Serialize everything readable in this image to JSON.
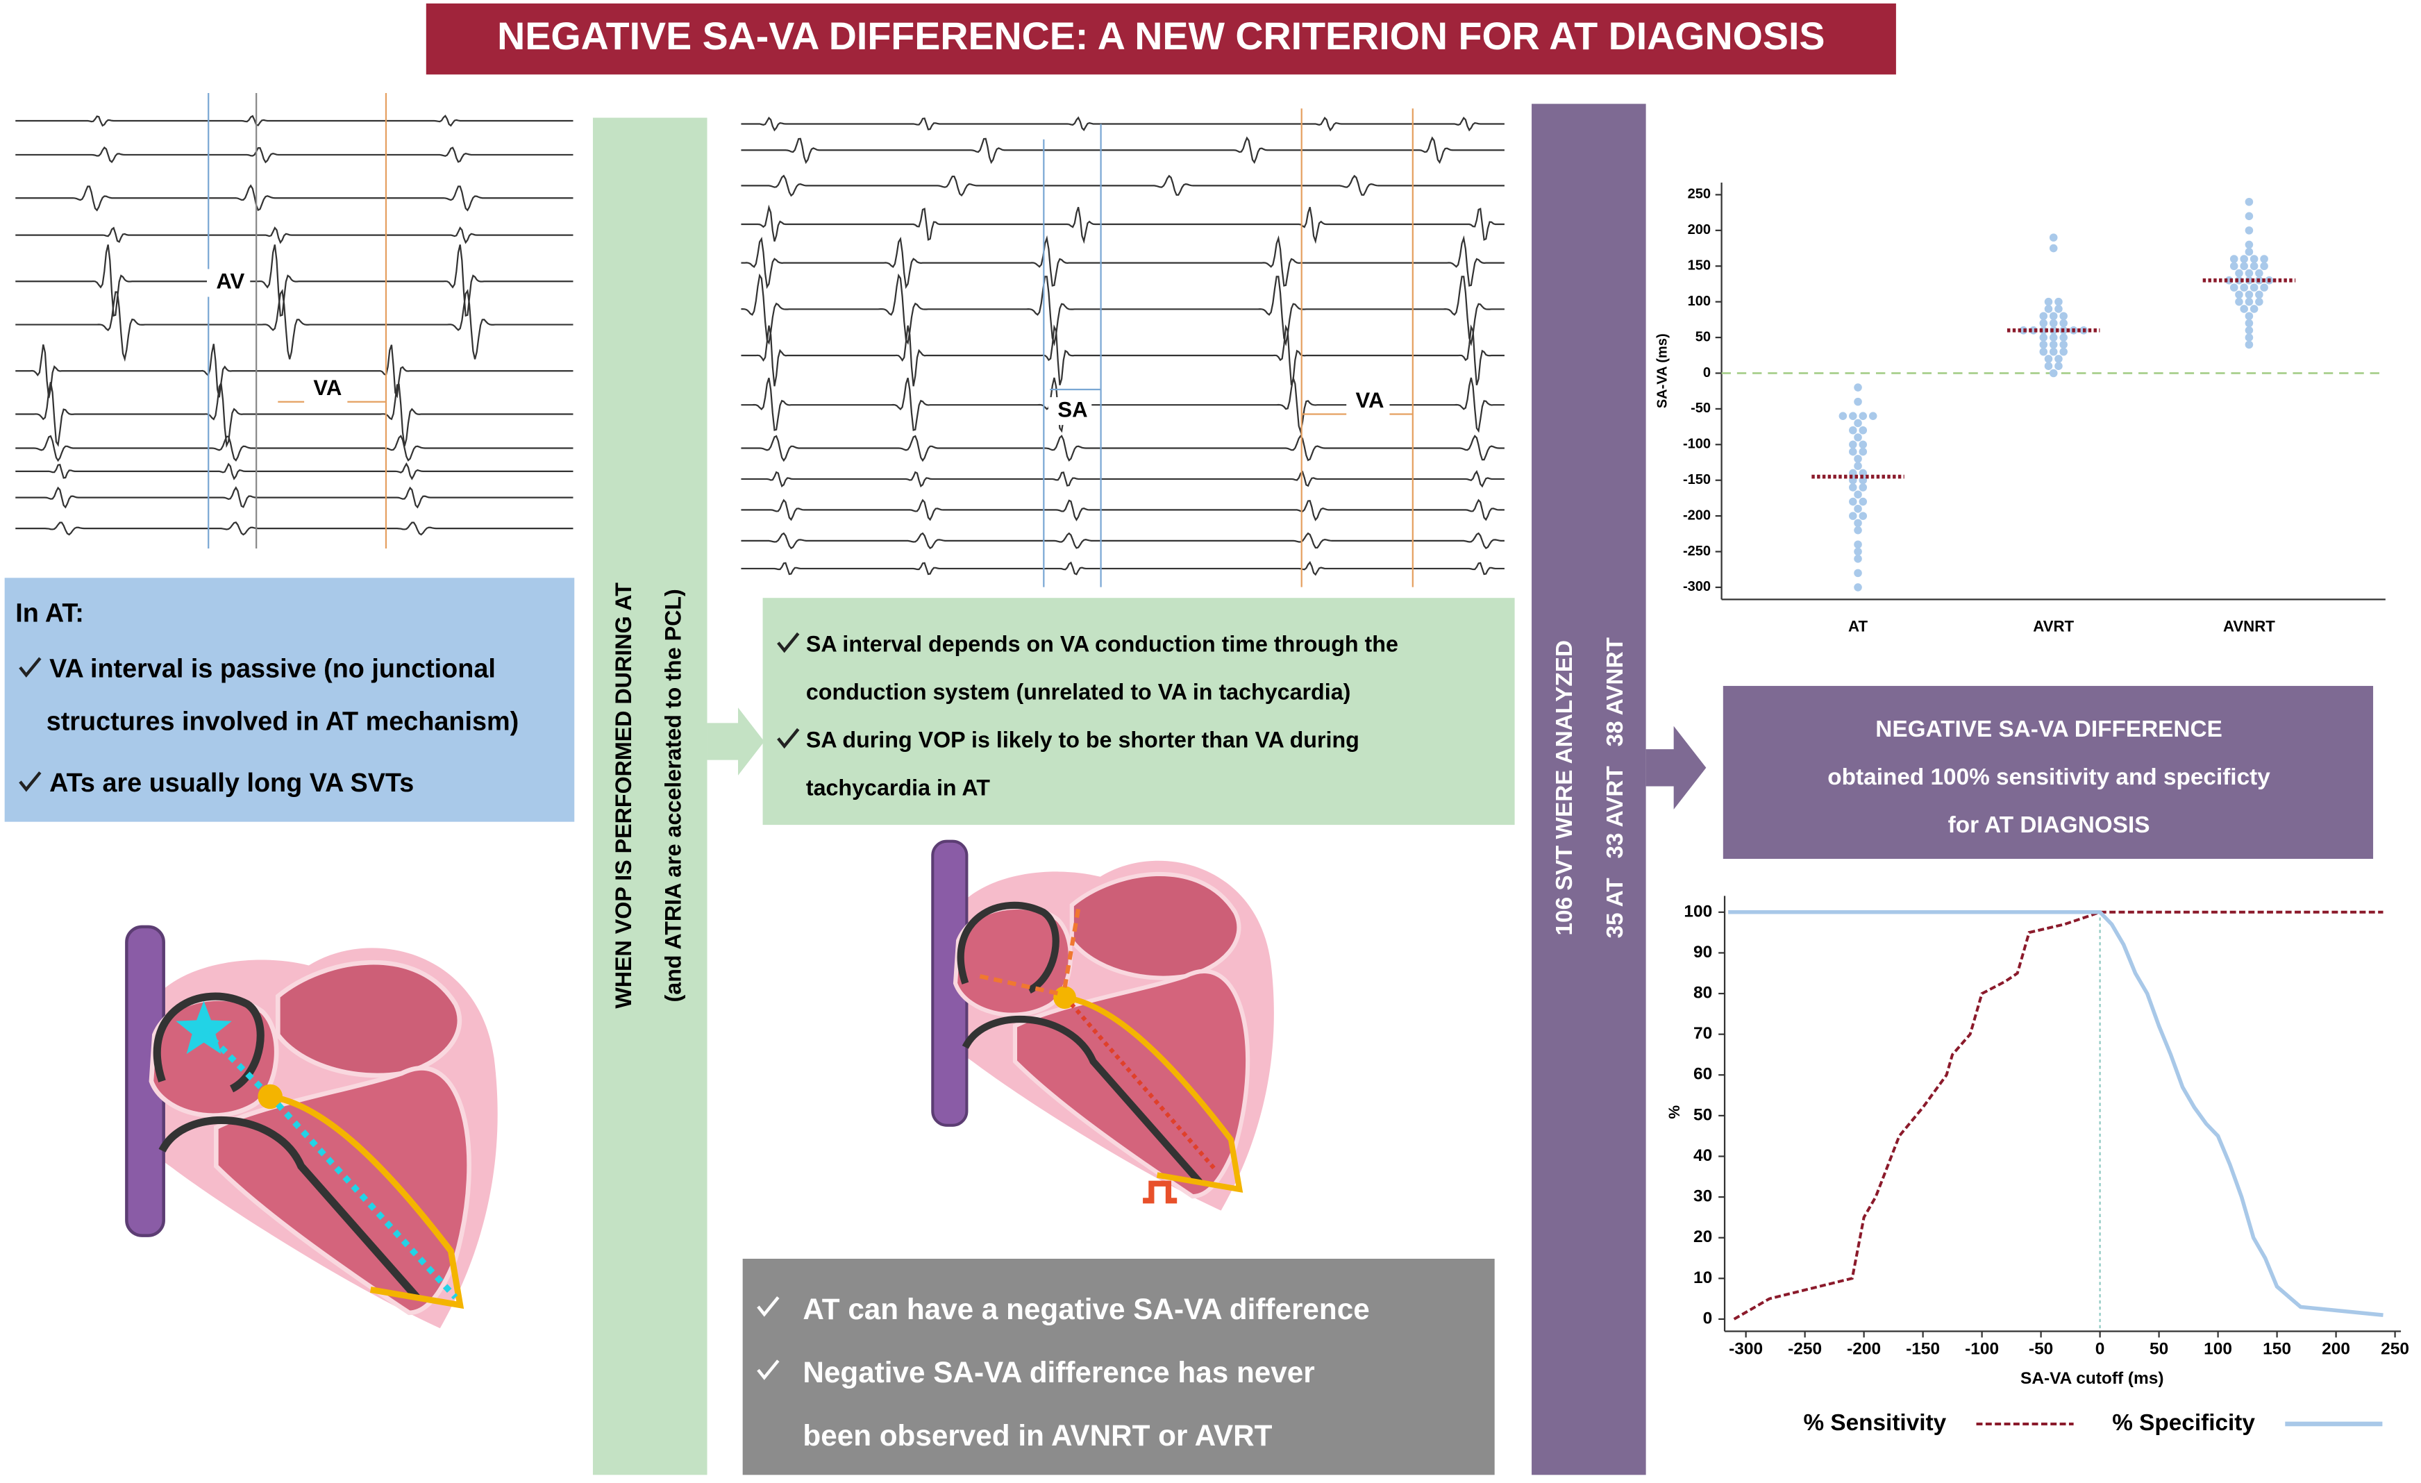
{
  "header": {
    "title": "NEGATIVE SA-VA DIFFERENCE: A NEW CRITERION FOR AT DIAGNOSIS"
  },
  "left_panel": {
    "ecg_labels": [
      "AV",
      "VA"
    ],
    "heading": "In AT:",
    "items": [
      [
        "VA interval is passive (no junctional",
        "structures involved in AT mechanism)"
      ],
      [
        "ATs are usually long VA SVTs"
      ]
    ]
  },
  "vop_bar": {
    "lines": [
      "WHEN VOP IS PERFORMED DURING AT",
      "(and ATRIA are accelerated to the PCL)"
    ]
  },
  "middle_panel": {
    "ecg_labels": [
      "SA",
      "VA"
    ],
    "items": [
      [
        "SA interval depends on VA conduction time through the",
        "conduction system (unrelated to VA in tachycardia)"
      ],
      [
        "SA during VOP is likely to be shorter than VA during",
        "tachycardia in AT"
      ]
    ],
    "conclusions": [
      [
        "AT can have a negative SA-VA difference"
      ],
      [
        "Negative SA-VA difference has never",
        "been observed in AVNRT or AVRT"
      ]
    ]
  },
  "svt_bar": {
    "lines": [
      "106 SVT WERE ANALYZED",
      "35 AT   33 AVRT   38 AVNRT"
    ]
  },
  "result_box": {
    "lines": [
      "NEGATIVE SA-VA DIFFERENCE",
      "obtained 100% sensitivity and specificty",
      "for AT DIAGNOSIS"
    ]
  },
  "chart_data": [
    {
      "type": "scatter",
      "y_label": "SA-VA (ms)",
      "categories": [
        "AT",
        "AVRT",
        "AVNRT"
      ],
      "values": [
        [
          -20,
          -40,
          -60,
          -60,
          -60,
          -60,
          -70,
          -80,
          -80,
          -90,
          -100,
          -100,
          -110,
          -110,
          -120,
          -130,
          -140,
          -140,
          -150,
          -150,
          -160,
          -160,
          -170,
          -180,
          -180,
          -190,
          -200,
          -200,
          -210,
          -220,
          -240,
          -250,
          -260,
          -280,
          -300
        ],
        [
          190,
          175,
          100,
          100,
          90,
          90,
          80,
          80,
          80,
          70,
          70,
          70,
          60,
          60,
          60,
          60,
          60,
          50,
          50,
          50,
          40,
          40,
          40,
          30,
          30,
          30,
          20,
          20,
          10,
          10,
          0,
          60,
          60
        ],
        [
          240,
          220,
          200,
          180,
          170,
          160,
          160,
          160,
          160,
          150,
          150,
          150,
          150,
          140,
          140,
          140,
          130,
          130,
          130,
          130,
          120,
          120,
          120,
          110,
          110,
          110,
          100,
          100,
          100,
          90,
          90,
          80,
          70,
          60,
          50,
          40,
          130,
          120
        ]
      ],
      "medians": [
        -145,
        60,
        130
      ],
      "color": "#a9c9ea",
      "median_color": "#8b1a2b",
      "reference_line": 0,
      "ylim": [
        -317,
        267
      ],
      "yticks": [
        -300,
        -250,
        -200,
        -150,
        -100,
        -50,
        0,
        50,
        100,
        150,
        200,
        250
      ]
    },
    {
      "type": "line",
      "x_label": "SA-VA cutoff (ms)",
      "y_label": "%",
      "xlim": [
        -318,
        255
      ],
      "ylim": [
        -3,
        104
      ],
      "xticks": [
        -300,
        -250,
        -200,
        -150,
        -100,
        -50,
        0,
        50,
        100,
        150,
        200,
        250
      ],
      "yticks": [
        0,
        10,
        20,
        30,
        40,
        50,
        60,
        70,
        80,
        90,
        100
      ],
      "reference_line": 0,
      "series": [
        {
          "name": "% Sensitivity",
          "color": "#8b1a2b",
          "dashed": true,
          "x": [
            -310,
            -280,
            -210,
            -200,
            -190,
            -170,
            -150,
            -130,
            -125,
            -110,
            -100,
            -80,
            -70,
            -60,
            -30,
            -10,
            0,
            240
          ],
          "values": [
            0,
            5,
            10,
            25,
            30,
            45,
            52,
            60,
            65,
            70,
            80,
            83,
            85,
            95,
            97,
            99,
            100,
            100
          ]
        },
        {
          "name": "% Specificity",
          "color": "#a8c8e8",
          "dashed": false,
          "x": [
            -315,
            0,
            10,
            20,
            30,
            40,
            50,
            60,
            70,
            80,
            90,
            100,
            110,
            120,
            130,
            140,
            150,
            170,
            240
          ],
          "values": [
            100,
            100,
            97,
            92,
            85,
            80,
            72,
            65,
            57,
            52,
            48,
            45,
            38,
            30,
            20,
            15,
            8,
            3,
            1
          ]
        }
      ]
    }
  ]
}
